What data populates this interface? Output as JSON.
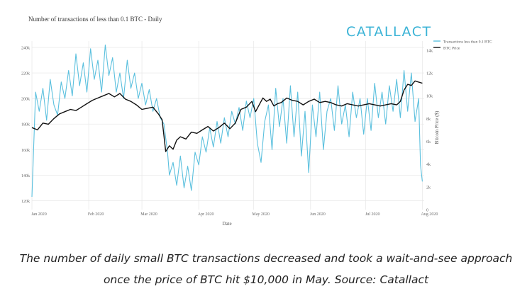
{
  "chart_title": "Number of transactions of less than 0.1 BTC - Daily",
  "logo": "CATALLACT",
  "caption_line1": "The number of daily small BTC transactions decreased and took a wait-and-see approach",
  "caption_line2": "once the price of BTC hit $10,000 in May. Source: Catallact",
  "colors": {
    "transactions": "#5bc0de",
    "price": "#111111",
    "grid": "#e6e6e6",
    "logo": "#3bb3d6"
  },
  "chart_data": {
    "type": "line",
    "title": "Number of transactions of less than 0.1 BTC - Daily",
    "xlabel": "Date",
    "ylabel_left": "",
    "ylabel_right": "Bitcoin Price ($)",
    "x_tick_labels": [
      "Jan 2020",
      "Feb 2020",
      "Mar 2020",
      "Apr 2020",
      "May 2020",
      "Jun 2020",
      "Jul 2020",
      "Aug 2020"
    ],
    "x_tick_days": [
      0,
      31,
      60,
      91,
      121,
      152,
      182,
      213
    ],
    "y_left_ticks": [
      "120k",
      "140k",
      "160k",
      "180k",
      "200k",
      "220k",
      "240k"
    ],
    "y_left_values": [
      120000,
      140000,
      160000,
      180000,
      200000,
      220000,
      240000
    ],
    "y_left_range": [
      113000,
      245000
    ],
    "y_right_ticks": [
      "0",
      "2k",
      "4k",
      "6k",
      "8k",
      "10k",
      "12k",
      "14k"
    ],
    "y_right_values": [
      0,
      2000,
      4000,
      6000,
      8000,
      10000,
      12000,
      14000
    ],
    "y_right_range": [
      0,
      14800
    ],
    "legend": [
      "Transactions less than 0.1 BTC",
      "BTC Price"
    ],
    "legend_position": "top-right",
    "series": [
      {
        "name": "Transactions less than 0.1 BTC",
        "axis": "left",
        "points": [
          [
            0,
            123000
          ],
          [
            2,
            205000
          ],
          [
            4,
            190000
          ],
          [
            6,
            208000
          ],
          [
            8,
            183000
          ],
          [
            10,
            215000
          ],
          [
            12,
            195000
          ],
          [
            14,
            187000
          ],
          [
            16,
            213000
          ],
          [
            18,
            200000
          ],
          [
            20,
            222000
          ],
          [
            22,
            202000
          ],
          [
            24,
            235000
          ],
          [
            26,
            210000
          ],
          [
            28,
            228000
          ],
          [
            30,
            205000
          ],
          [
            32,
            239000
          ],
          [
            34,
            215000
          ],
          [
            36,
            230000
          ],
          [
            38,
            205000
          ],
          [
            40,
            242000
          ],
          [
            42,
            218000
          ],
          [
            44,
            232000
          ],
          [
            46,
            205000
          ],
          [
            48,
            220000
          ],
          [
            50,
            200000
          ],
          [
            52,
            230000
          ],
          [
            54,
            208000
          ],
          [
            56,
            220000
          ],
          [
            58,
            200000
          ],
          [
            60,
            212000
          ],
          [
            62,
            195000
          ],
          [
            64,
            207000
          ],
          [
            66,
            190000
          ],
          [
            68,
            200000
          ],
          [
            70,
            185000
          ],
          [
            72,
            180000
          ],
          [
            74,
            158000
          ],
          [
            75,
            140000
          ],
          [
            77,
            150000
          ],
          [
            79,
            132000
          ],
          [
            81,
            155000
          ],
          [
            83,
            130000
          ],
          [
            85,
            147000
          ],
          [
            87,
            128000
          ],
          [
            89,
            158000
          ],
          [
            91,
            148000
          ],
          [
            93,
            170000
          ],
          [
            95,
            158000
          ],
          [
            97,
            177000
          ],
          [
            99,
            162000
          ],
          [
            101,
            182000
          ],
          [
            103,
            165000
          ],
          [
            105,
            185000
          ],
          [
            107,
            170000
          ],
          [
            109,
            190000
          ],
          [
            111,
            180000
          ],
          [
            113,
            193000
          ],
          [
            115,
            175000
          ],
          [
            117,
            198000
          ],
          [
            119,
            185000
          ],
          [
            121,
            200000
          ],
          [
            123,
            165000
          ],
          [
            125,
            150000
          ],
          [
            127,
            182000
          ],
          [
            129,
            195000
          ],
          [
            131,
            160000
          ],
          [
            133,
            208000
          ],
          [
            135,
            178000
          ],
          [
            137,
            200000
          ],
          [
            139,
            165000
          ],
          [
            141,
            210000
          ],
          [
            143,
            170000
          ],
          [
            145,
            205000
          ],
          [
            147,
            155000
          ],
          [
            149,
            190000
          ],
          [
            151,
            142000
          ],
          [
            153,
            195000
          ],
          [
            155,
            170000
          ],
          [
            157,
            205000
          ],
          [
            159,
            160000
          ],
          [
            161,
            190000
          ],
          [
            163,
            200000
          ],
          [
            165,
            175000
          ],
          [
            167,
            210000
          ],
          [
            169,
            180000
          ],
          [
            171,
            195000
          ],
          [
            173,
            170000
          ],
          [
            175,
            205000
          ],
          [
            177,
            185000
          ],
          [
            179,
            200000
          ],
          [
            181,
            172000
          ],
          [
            183,
            200000
          ],
          [
            185,
            175000
          ],
          [
            187,
            212000
          ],
          [
            189,
            185000
          ],
          [
            191,
            205000
          ],
          [
            193,
            180000
          ],
          [
            195,
            210000
          ],
          [
            197,
            190000
          ],
          [
            199,
            215000
          ],
          [
            201,
            185000
          ],
          [
            203,
            222000
          ],
          [
            205,
            190000
          ],
          [
            207,
            220000
          ],
          [
            209,
            182000
          ],
          [
            211,
            200000
          ],
          [
            212,
            148000
          ],
          [
            213,
            135000
          ]
        ]
      },
      {
        "name": "BTC Price",
        "axis": "right",
        "points": [
          [
            0,
            7200
          ],
          [
            3,
            7000
          ],
          [
            6,
            7600
          ],
          [
            9,
            7500
          ],
          [
            12,
            8000
          ],
          [
            15,
            8400
          ],
          [
            18,
            8600
          ],
          [
            21,
            8800
          ],
          [
            24,
            8700
          ],
          [
            27,
            9000
          ],
          [
            30,
            9300
          ],
          [
            33,
            9600
          ],
          [
            36,
            9800
          ],
          [
            39,
            10000
          ],
          [
            42,
            10200
          ],
          [
            45,
            9900
          ],
          [
            48,
            10200
          ],
          [
            51,
            9700
          ],
          [
            54,
            9500
          ],
          [
            57,
            9200
          ],
          [
            60,
            8800
          ],
          [
            63,
            8900
          ],
          [
            66,
            9000
          ],
          [
            69,
            8400
          ],
          [
            71,
            7900
          ],
          [
            72,
            6500
          ],
          [
            73,
            5100
          ],
          [
            75,
            5600
          ],
          [
            77,
            5300
          ],
          [
            79,
            6100
          ],
          [
            81,
            6400
          ],
          [
            84,
            6200
          ],
          [
            87,
            6800
          ],
          [
            90,
            6700
          ],
          [
            93,
            7000
          ],
          [
            96,
            7300
          ],
          [
            99,
            6900
          ],
          [
            102,
            7200
          ],
          [
            105,
            7600
          ],
          [
            108,
            7100
          ],
          [
            111,
            7600
          ],
          [
            114,
            8800
          ],
          [
            117,
            9000
          ],
          [
            120,
            9500
          ],
          [
            122,
            8600
          ],
          [
            124,
            9200
          ],
          [
            126,
            9800
          ],
          [
            128,
            9500
          ],
          [
            130,
            9700
          ],
          [
            132,
            9100
          ],
          [
            134,
            9300
          ],
          [
            136,
            9400
          ],
          [
            139,
            9800
          ],
          [
            142,
            9600
          ],
          [
            145,
            9500
          ],
          [
            148,
            9200
          ],
          [
            151,
            9500
          ],
          [
            154,
            9700
          ],
          [
            157,
            9400
          ],
          [
            160,
            9500
          ],
          [
            163,
            9400
          ],
          [
            166,
            9200
          ],
          [
            169,
            9100
          ],
          [
            172,
            9300
          ],
          [
            175,
            9200
          ],
          [
            178,
            9100
          ],
          [
            181,
            9200
          ],
          [
            184,
            9300
          ],
          [
            187,
            9200
          ],
          [
            190,
            9100
          ],
          [
            193,
            9200
          ],
          [
            196,
            9300
          ],
          [
            199,
            9200
          ],
          [
            201,
            9500
          ],
          [
            203,
            10500
          ],
          [
            205,
            11000
          ],
          [
            207,
            10900
          ],
          [
            209,
            11300
          ],
          [
            211,
            11200
          ],
          [
            213,
            11100
          ]
        ]
      }
    ]
  }
}
